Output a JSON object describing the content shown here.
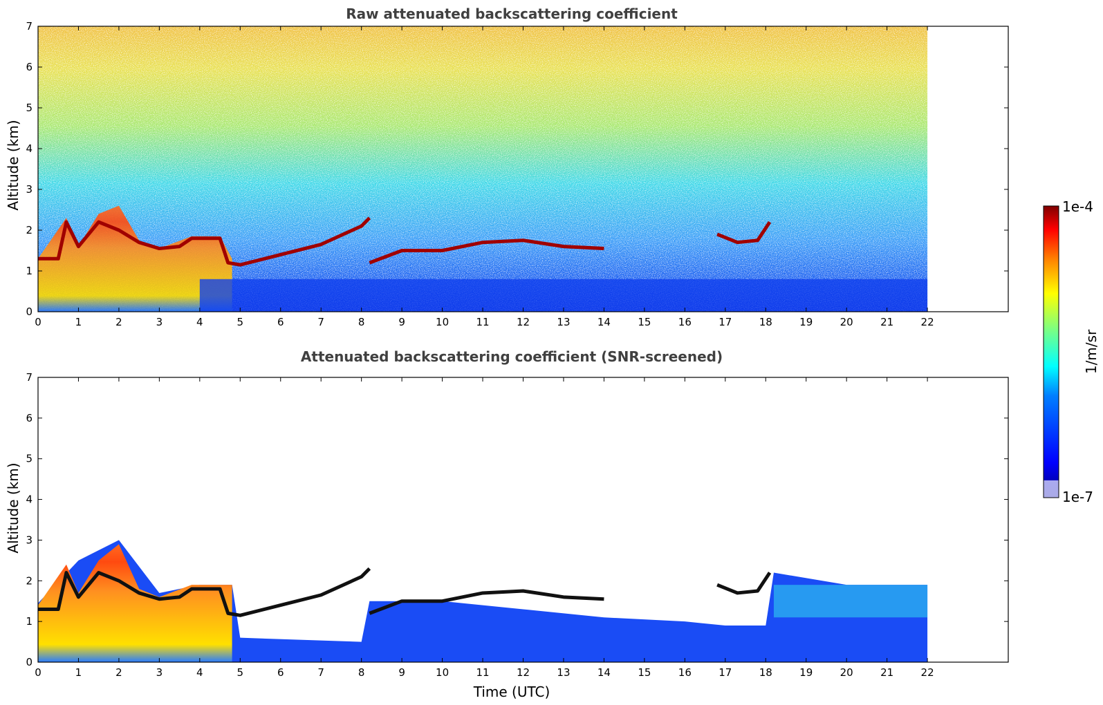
{
  "chart_data": [
    {
      "type": "heatmap",
      "title": "Raw attenuated backscattering coefficient",
      "xlabel": "",
      "ylabel": "Altitude (km)",
      "xlim": [
        0,
        24
      ],
      "ylim": [
        0,
        7
      ],
      "x_ticks": [
        "0",
        "1",
        "2",
        "3",
        "4",
        "5",
        "6",
        "7",
        "8",
        "9",
        "10",
        "11",
        "12",
        "13",
        "14",
        "15",
        "16",
        "17",
        "18",
        "19",
        "20",
        "21",
        "22"
      ],
      "y_ticks": [
        "0",
        "1",
        "2",
        "3",
        "4",
        "5",
        "6",
        "7"
      ],
      "data_extent_hours": [
        0,
        22
      ],
      "grid": false,
      "colormap": "jet",
      "layers": [
        {
          "feature": "aerosol layer",
          "points": [
            [
              0,
              1.3
            ],
            [
              0.5,
              1.3
            ],
            [
              0.7,
              2.2
            ],
            [
              1,
              1.6
            ],
            [
              1.5,
              2.2
            ],
            [
              2,
              2.0
            ],
            [
              2.5,
              1.7
            ],
            [
              3,
              1.55
            ],
            [
              3.5,
              1.6
            ],
            [
              3.8,
              1.8
            ],
            [
              4.5,
              1.8
            ],
            [
              4.7,
              1.2
            ],
            [
              5,
              1.15
            ],
            [
              6,
              1.4
            ],
            [
              7,
              1.65
            ],
            [
              8,
              2.1
            ],
            [
              8.2,
              2.3
            ]
          ]
        },
        {
          "feature": "aerosol layer",
          "points": [
            [
              8.2,
              1.2
            ],
            [
              9,
              1.5
            ],
            [
              10,
              1.5
            ],
            [
              11,
              1.7
            ],
            [
              12,
              1.75
            ],
            [
              13,
              1.6
            ],
            [
              14,
              1.55
            ]
          ]
        },
        {
          "feature": "aerosol layer",
          "points": [
            [
              16.8,
              1.9
            ],
            [
              17.3,
              1.7
            ],
            [
              17.8,
              1.75
            ],
            [
              18.1,
              2.2
            ]
          ]
        }
      ]
    },
    {
      "type": "heatmap",
      "title": "Attenuated backscattering coefficient (SNR-screened)",
      "xlabel": "Time (UTC)",
      "ylabel": "Altitude (km)",
      "xlim": [
        0,
        24
      ],
      "ylim": [
        0,
        7
      ],
      "x_ticks": [
        "0",
        "1",
        "2",
        "3",
        "4",
        "5",
        "6",
        "7",
        "8",
        "9",
        "10",
        "11",
        "12",
        "13",
        "14",
        "15",
        "16",
        "17",
        "18",
        "19",
        "20",
        "21",
        "22"
      ],
      "y_ticks": [
        "0",
        "1",
        "2",
        "3",
        "4",
        "5",
        "6",
        "7"
      ],
      "data_extent_hours": [
        0,
        22
      ],
      "grid": false,
      "colormap": "jet",
      "screened_top_km": [
        [
          0,
          1.45
        ],
        [
          1,
          2.5
        ],
        [
          2,
          3.0
        ],
        [
          3,
          1.7
        ],
        [
          4,
          1.9
        ],
        [
          4.8,
          1.9
        ],
        [
          5,
          0.6
        ],
        [
          8,
          0.5
        ],
        [
          8.2,
          1.5
        ],
        [
          10,
          1.5
        ],
        [
          12,
          1.3
        ],
        [
          14,
          1.1
        ],
        [
          16,
          1.0
        ],
        [
          17,
          0.9
        ],
        [
          18,
          0.9
        ],
        [
          18.2,
          2.2
        ],
        [
          20,
          1.9
        ],
        [
          22,
          1.9
        ]
      ]
    }
  ],
  "colorbar": {
    "max_label": "1e-4",
    "min_label": "1e-7",
    "unit_label": "1/m/sr",
    "colors": [
      "#00007f",
      "#0000ff",
      "#007fff",
      "#00ffff",
      "#7fff7f",
      "#ffff00",
      "#ff7f00",
      "#ff0000",
      "#7f0000"
    ]
  }
}
